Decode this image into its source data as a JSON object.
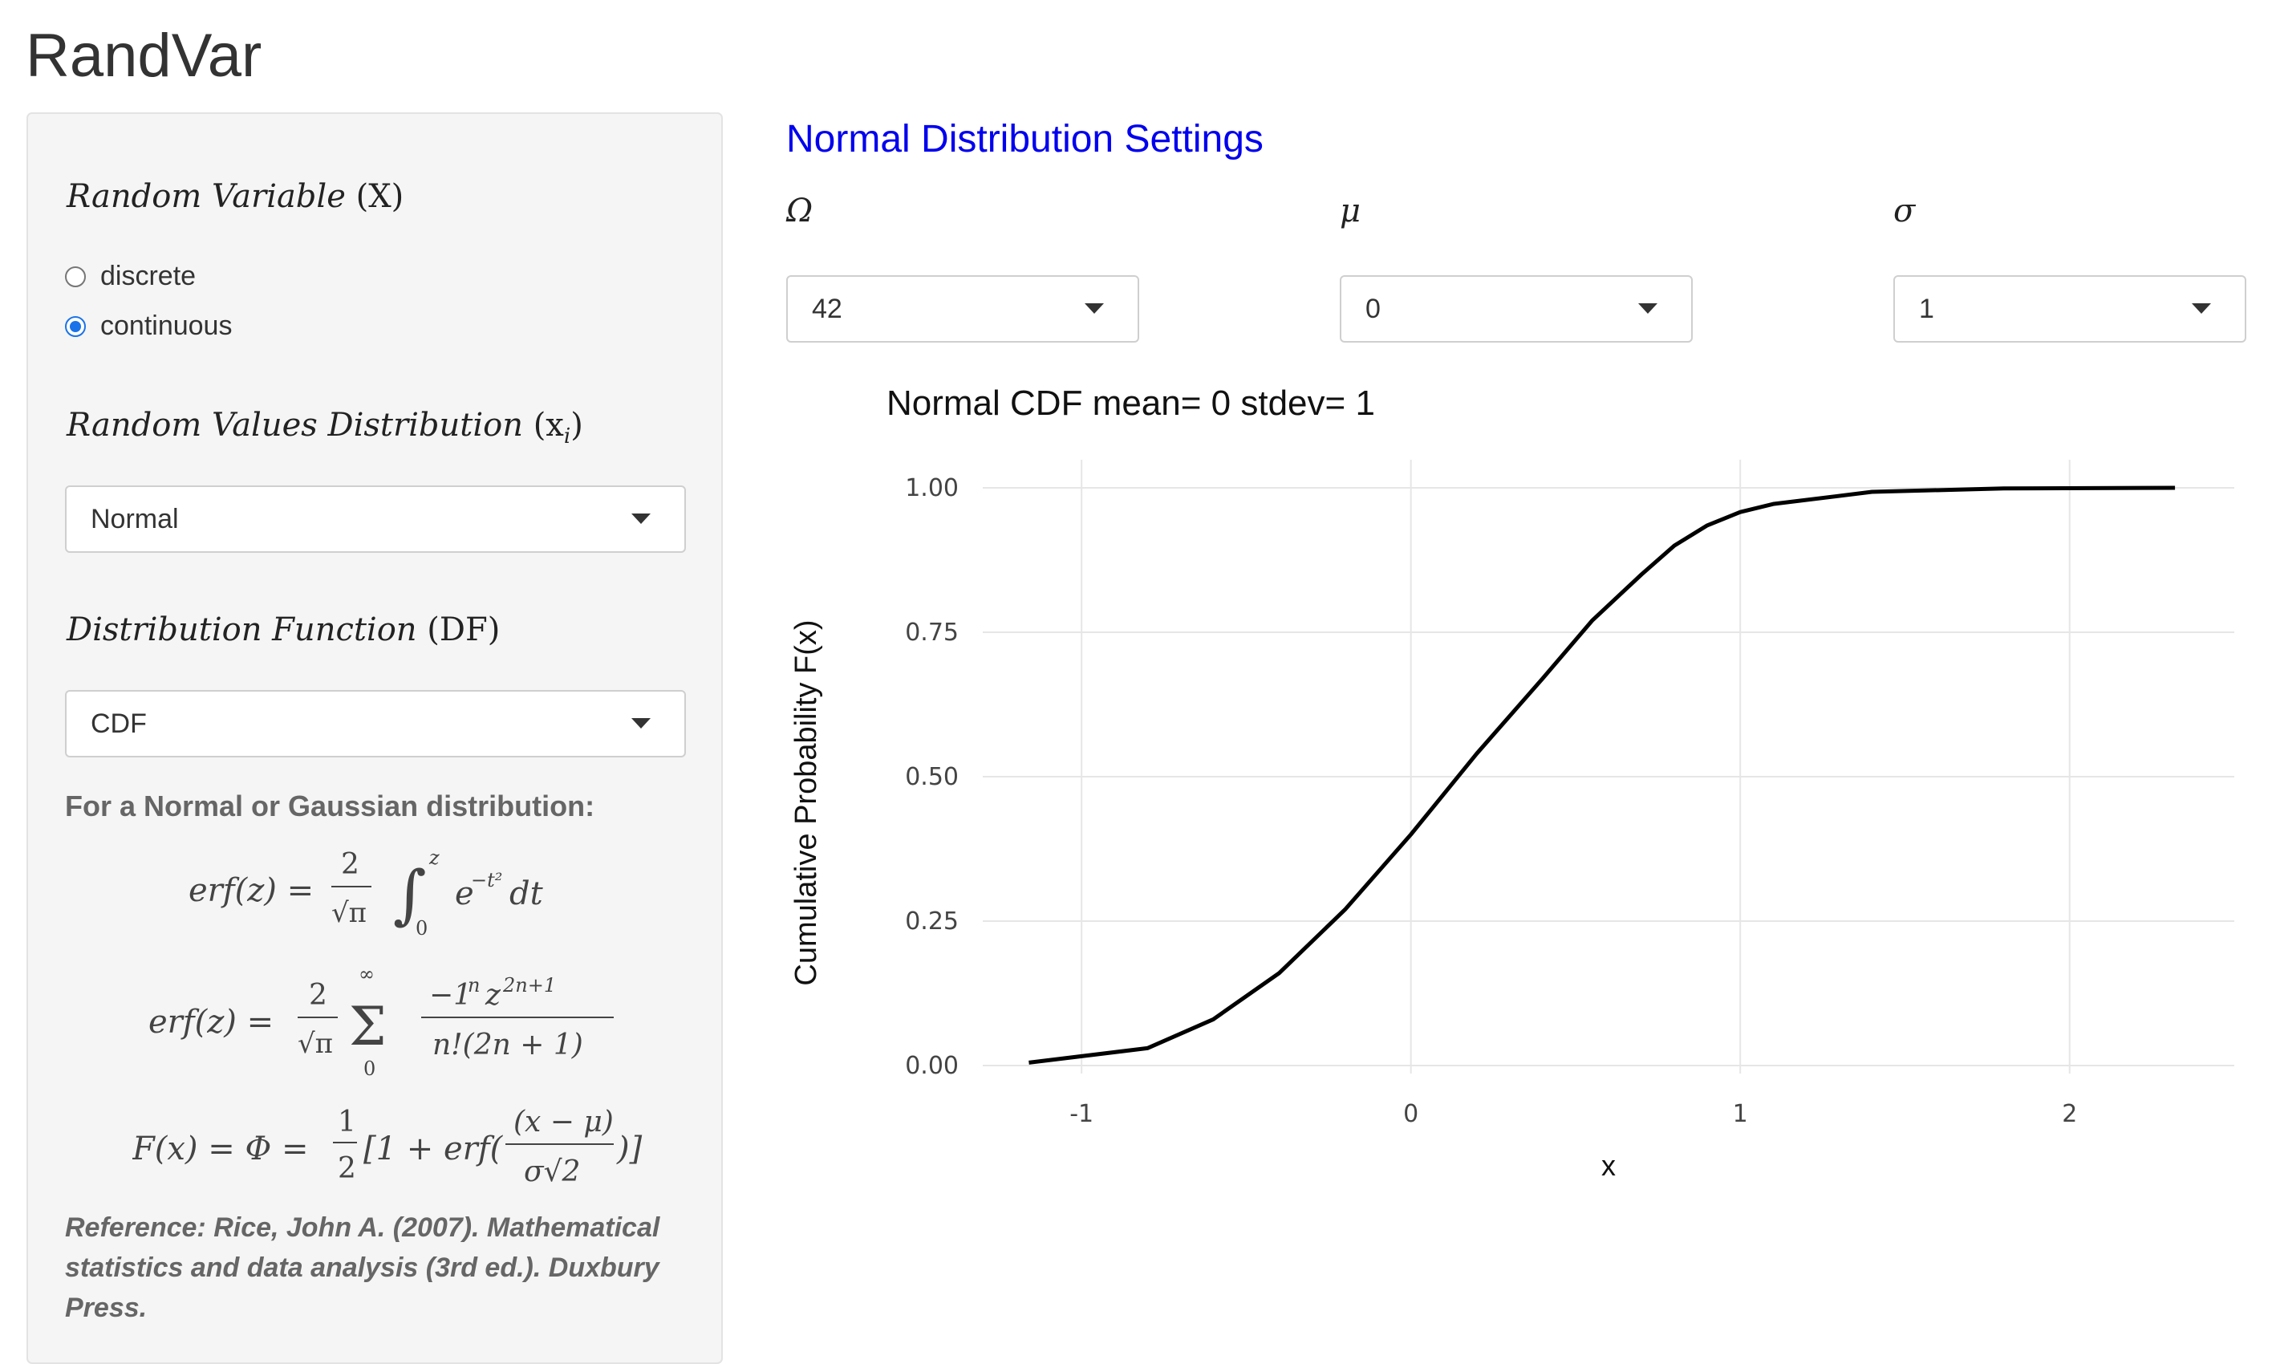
{
  "app": {
    "title": "RandVar"
  },
  "sidebar": {
    "random_variable": {
      "label_text": "Random Variable",
      "label_symbol": "(X)",
      "options": [
        {
          "label": "discrete",
          "checked": false
        },
        {
          "label": "continuous",
          "checked": true
        }
      ]
    },
    "values_distribution": {
      "label_text": "Random Values Distribution",
      "label_symbol": "(x",
      "label_sub": "i",
      "label_close": ")",
      "selected": "Normal"
    },
    "distribution_function": {
      "label_text": "Distribution Function",
      "label_symbol": "(DF)",
      "selected": "CDF"
    },
    "info": {
      "heading": "For a Normal or Gaussian distribution:",
      "reference": "Reference: Rice, John A. (2007). Mathematical statistics and data analysis (3rd ed.). Duxbury Press."
    }
  },
  "settings": {
    "title": "Normal Distribution Settings",
    "params": [
      {
        "symbol": "Ω",
        "selected": "42"
      },
      {
        "symbol": "μ",
        "selected": "0"
      },
      {
        "symbol": "σ",
        "selected": "1"
      }
    ]
  },
  "chart_data": {
    "type": "line",
    "title": "Normal CDF mean= 0 stdev= 1",
    "xlabel": "x",
    "ylabel": "Cumulative Probability F(x)",
    "xlim": [
      -1.3,
      2.5
    ],
    "ylim": [
      0,
      1
    ],
    "x_ticks": [
      "-1",
      "0",
      "1",
      "2"
    ],
    "y_ticks": [
      "0.00",
      "0.25",
      "0.50",
      "0.75",
      "1.00"
    ],
    "grid": true,
    "color": "#000000",
    "series": [
      {
        "x": [
          -1.16,
          -0.8,
          -0.6,
          -0.4,
          -0.2,
          0.0,
          0.2,
          0.4,
          0.55,
          0.7,
          0.8,
          0.9,
          1.0,
          1.1,
          1.4,
          1.8,
          2.32
        ],
        "y": [
          0.005,
          0.03,
          0.08,
          0.16,
          0.27,
          0.4,
          0.54,
          0.67,
          0.77,
          0.85,
          0.9,
          0.935,
          0.958,
          0.972,
          0.993,
          0.999,
          1.0
        ]
      }
    ]
  }
}
